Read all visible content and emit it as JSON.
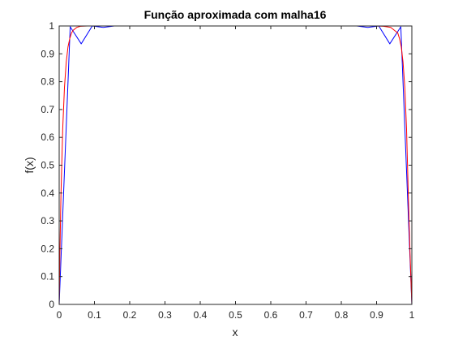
{
  "chart_data": {
    "type": "line",
    "title": "Função aproximada com malha16",
    "xlabel": "x",
    "ylabel": "f(x)",
    "xlim": [
      0,
      1
    ],
    "ylim": [
      0,
      1
    ],
    "xticks": [
      "0",
      "0.1",
      "0.2",
      "0.3",
      "0.4",
      "0.5",
      "0.6",
      "0.7",
      "0.8",
      "0.9",
      "1"
    ],
    "yticks": [
      "0",
      "0.1",
      "0.2",
      "0.3",
      "0.4",
      "0.5",
      "0.6",
      "0.7",
      "0.8",
      "0.9",
      "1"
    ],
    "grid": false,
    "legend": "none",
    "series": [
      {
        "color": "#0000ff",
        "x": [
          0,
          0.03125,
          0.0625,
          0.09375,
          0.125,
          0.15625,
          0.1875,
          0.21875,
          0.25,
          0.28125,
          0.3125,
          0.34375,
          0.375,
          0.40625,
          0.4375,
          0.46875,
          0.5,
          0.53125,
          0.5625,
          0.59375,
          0.625,
          0.65625,
          0.6875,
          0.71875,
          0.75,
          0.78125,
          0.8125,
          0.84375,
          0.875,
          0.90625,
          0.9375,
          0.96875,
          1
        ],
        "y": [
          0,
          0.997,
          0.936,
          1.0,
          0.995,
          1.0,
          1.0,
          1.0,
          1.0,
          1.0,
          1.0,
          1.0,
          1.0,
          1.0,
          1.0,
          1.0,
          1.0,
          1.0,
          1.0,
          1.0,
          1.0,
          1.0,
          1.0,
          1.0,
          1.0,
          1.0,
          1.0,
          1.0,
          0.995,
          1.0,
          0.936,
          0.997,
          0
        ]
      },
      {
        "color": "#ff0000",
        "x": [
          0,
          0.002,
          0.005,
          0.01,
          0.015,
          0.02,
          0.025,
          0.03,
          0.035,
          0.04,
          0.05,
          0.06,
          0.08,
          0.1,
          0.15,
          0.2,
          0.3,
          0.4,
          0.5,
          0.6,
          0.7,
          0.8,
          0.85,
          0.9,
          0.92,
          0.94,
          0.95,
          0.96,
          0.965,
          0.97,
          0.975,
          0.98,
          0.985,
          0.99,
          0.995,
          0.998,
          1
        ],
        "y": [
          0,
          0.18,
          0.39,
          0.63,
          0.78,
          0.87,
          0.925,
          0.955,
          0.975,
          0.985,
          0.995,
          0.999,
          1.0,
          1.0,
          1.0,
          1.0,
          1.0,
          1.0,
          1.0,
          1.0,
          1.0,
          1.0,
          1.0,
          1.0,
          0.999,
          0.995,
          0.985,
          0.975,
          0.955,
          0.925,
          0.87,
          0.78,
          0.63,
          0.39,
          0.18,
          0.07,
          0
        ]
      }
    ]
  }
}
